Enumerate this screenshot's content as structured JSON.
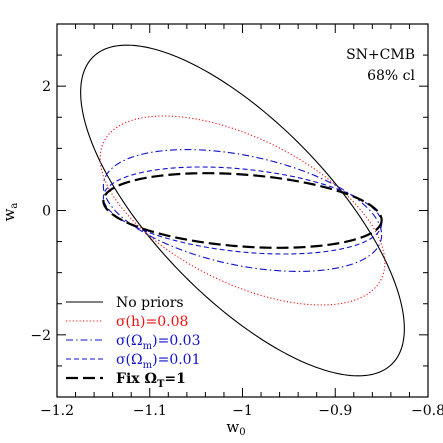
{
  "chart_data": {
    "type": "line",
    "title": "",
    "annotation": [
      "SN+CMB",
      "68% cl"
    ],
    "xlabel": "w",
    "xlabel_sub": "0",
    "ylabel": "w",
    "ylabel_sub": "a",
    "xlim": [
      -1.2,
      -0.8
    ],
    "ylim": [
      -3.0,
      3.0
    ],
    "x_ticks": [
      -1.2,
      -1.1,
      -1.0,
      -0.9,
      -0.8
    ],
    "x_tick_labels": [
      "−1.2",
      "−1.1",
      "−1",
      "−0.9",
      "−0.8"
    ],
    "y_ticks": [
      -2,
      0,
      2
    ],
    "y_tick_labels": [
      "−2",
      "0",
      "2"
    ],
    "grid": false,
    "legend_position": "bottom-left",
    "series": [
      {
        "name": "No priors",
        "legend_label": "No priors",
        "legend_sub": "",
        "legend_suffix": "",
        "color": "#000000",
        "dash": "",
        "stroke_width": 1.1,
        "ellipse": {
          "center": [
            -1.0,
            0.0
          ],
          "extreme_x": [
            -1.176,
            -0.827
          ],
          "extreme_y": [
            2.65,
            -2.67
          ]
        }
      },
      {
        "name": "σ(h)=0.08",
        "legend_label": "σ(h)=0.08",
        "legend_sub": "",
        "legend_suffix": "",
        "color": "#ee1111",
        "dash": "1.2,2.2",
        "stroke_width": 1.1,
        "ellipse": {
          "center": [
            -1.0,
            0.0
          ],
          "extreme_x": [
            -1.155,
            -0.848
          ],
          "extreme_y": [
            1.52,
            -1.52
          ]
        }
      },
      {
        "name": "σ(Ωm)=0.03",
        "legend_label": "σ(Ω",
        "legend_sub": "m",
        "legend_suffix": ")=0.03",
        "color": "#1111cc",
        "dash": "7,3,1.5,3",
        "stroke_width": 1.1,
        "ellipse": {
          "center": [
            -1.0,
            0.0
          ],
          "extreme_x": [
            -1.15,
            -0.85
          ],
          "extreme_y": [
            0.98,
            -0.98
          ]
        }
      },
      {
        "name": "σ(Ωm)=0.01",
        "legend_label": "σ(Ω",
        "legend_sub": "m",
        "legend_suffix": ")=0.01",
        "color": "#1111cc",
        "dash": "5,3",
        "stroke_width": 1.1,
        "ellipse": {
          "center": [
            -1.0,
            0.0
          ],
          "extreme_x": [
            -1.15,
            -0.85
          ],
          "extreme_y": [
            0.7,
            -0.7
          ]
        }
      },
      {
        "name": "Fix ΩT=1",
        "legend_label": "Fix Ω",
        "legend_sub": "T",
        "legend_suffix": "=1",
        "color": "#000000",
        "dash": "12,5",
        "stroke_width": 2.2,
        "ellipse": {
          "center": [
            -1.0,
            0.0
          ],
          "extreme_x": [
            -1.15,
            -0.85
          ],
          "extreme_y": [
            0.6,
            -0.6
          ]
        }
      }
    ]
  }
}
